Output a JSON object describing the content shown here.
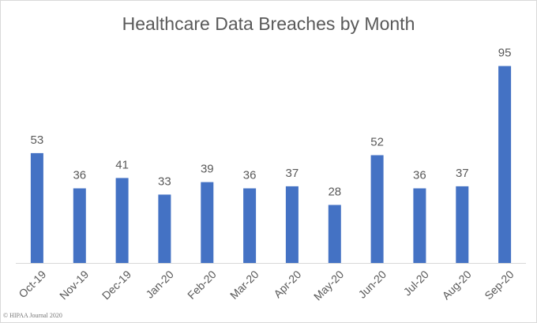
{
  "chart_data": {
    "type": "bar",
    "title": "Healthcare Data Breaches by Month",
    "categories": [
      "Oct-19",
      "Nov-19",
      "Dec-19",
      "Jan-20",
      "Feb-20",
      "Mar-20",
      "Apr-20",
      "May-20",
      "Jun-20",
      "Jul-20",
      "Aug-20",
      "Sep-20"
    ],
    "values": [
      53,
      36,
      41,
      33,
      39,
      36,
      37,
      28,
      52,
      36,
      37,
      95
    ],
    "xlabel": "",
    "ylabel": "",
    "ylim": [
      0,
      100
    ],
    "grid": false,
    "legend": "none",
    "data_labels": true,
    "colors": {
      "bar": "#4472c4",
      "text": "#595959",
      "axis": "#d9d9d9"
    }
  },
  "credit": "© HIPAA Journal 2020"
}
